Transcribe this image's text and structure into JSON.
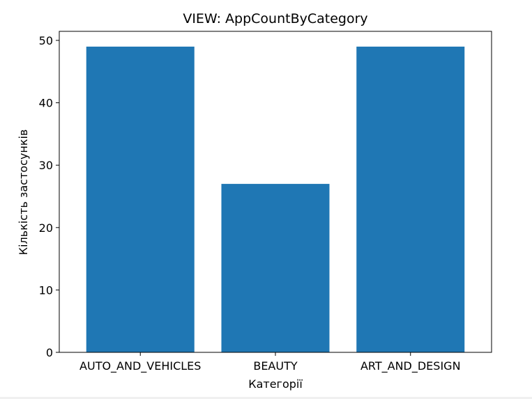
{
  "chart_data": {
    "type": "bar",
    "title": "VIEW: AppCountByCategory",
    "xlabel": "Категорії",
    "ylabel": "Кількість застосунків",
    "categories": [
      "AUTO_AND_VEHICLES",
      "BEAUTY",
      "ART_AND_DESIGN"
    ],
    "values": [
      49,
      27,
      49
    ],
    "ylim": [
      0,
      51.45
    ],
    "yticks": [
      0,
      10,
      20,
      30,
      40,
      50
    ],
    "grid": false,
    "legend": "none",
    "bar_color": "#1f77b4"
  }
}
